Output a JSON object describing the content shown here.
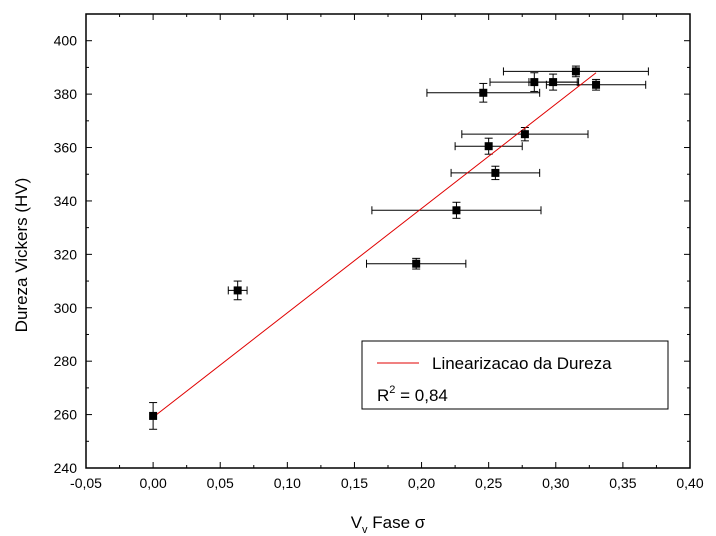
{
  "chart_data": {
    "type": "scatter",
    "xlabel": "V",
    "xlabel_sub": "v",
    "xlabel_rest": " Fase σ",
    "ylabel": "Dureza Vickers (HV)",
    "xlim": [
      -0.05,
      0.4
    ],
    "ylim": [
      240,
      410
    ],
    "x_ticks": [
      -0.05,
      0.0,
      0.05,
      0.1,
      0.15,
      0.2,
      0.25,
      0.3,
      0.35,
      0.4
    ],
    "x_tick_labels": [
      "-0,05",
      "0,00",
      "0,05",
      "0,10",
      "0,15",
      "0,20",
      "0,25",
      "0,30",
      "0,35",
      "0,40"
    ],
    "y_ticks": [
      240,
      260,
      280,
      300,
      320,
      340,
      360,
      380,
      400
    ],
    "y_tick_labels": [
      "240",
      "260",
      "280",
      "300",
      "320",
      "340",
      "360",
      "380",
      "400"
    ],
    "grid": false,
    "legend_position": "bottom-right",
    "series": [
      {
        "type": "scatter",
        "marker": "square",
        "color": "#000000",
        "points": [
          {
            "x": 0.0,
            "y": 259.5,
            "xerr": 0.0,
            "yerr": 5.0
          },
          {
            "x": 0.063,
            "y": 306.5,
            "xerr": 0.007,
            "yerr": 3.5
          },
          {
            "x": 0.196,
            "y": 316.5,
            "xerr": 0.037,
            "yerr": 2.0
          },
          {
            "x": 0.226,
            "y": 336.5,
            "xerr": 0.063,
            "yerr": 3.0
          },
          {
            "x": 0.255,
            "y": 350.5,
            "xerr": 0.033,
            "yerr": 2.5
          },
          {
            "x": 0.25,
            "y": 360.5,
            "xerr": 0.025,
            "yerr": 3.0
          },
          {
            "x": 0.277,
            "y": 365.0,
            "xerr": 0.047,
            "yerr": 2.5
          },
          {
            "x": 0.246,
            "y": 380.5,
            "xerr": 0.042,
            "yerr": 3.5
          },
          {
            "x": 0.284,
            "y": 384.5,
            "xerr": 0.033,
            "yerr": 3.5
          },
          {
            "x": 0.298,
            "y": 384.5,
            "xerr": 0.018,
            "yerr": 3.0
          },
          {
            "x": 0.33,
            "y": 383.5,
            "xerr": 0.037,
            "yerr": 2.0
          },
          {
            "x": 0.315,
            "y": 388.5,
            "xerr": 0.054,
            "yerr": 2.0
          }
        ]
      },
      {
        "name": "Linearizacao da Dureza",
        "type": "line",
        "color": "#e00000",
        "x": [
          0.0,
          0.33
        ],
        "y": [
          259.0,
          388.0
        ]
      }
    ],
    "annotation": {
      "r_label": "R",
      "r_sup": "2",
      "r_value": " = 0,84"
    }
  }
}
